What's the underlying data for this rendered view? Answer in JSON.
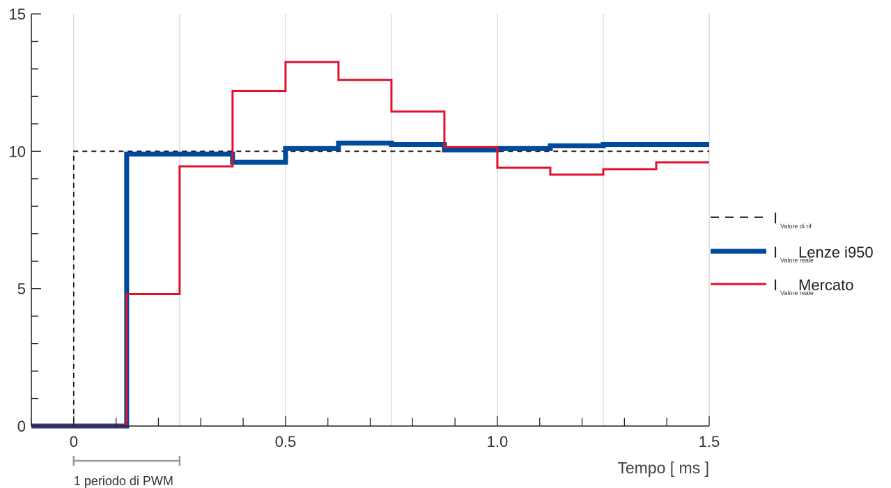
{
  "chart_data": {
    "type": "line",
    "step": true,
    "xlabel": "Tempo [ ms ]",
    "xlim": [
      -0.1,
      1.5
    ],
    "ylim": [
      0,
      15
    ],
    "x_ticks": [
      0,
      0.5,
      1.0,
      1.5
    ],
    "x_tick_labels": [
      "0",
      "0.5",
      "1.0",
      "1.5"
    ],
    "y_ticks": [
      0,
      5,
      10,
      15
    ],
    "y_tick_labels": [
      "0",
      "5",
      "10",
      "15"
    ],
    "grid": "vertical",
    "legend_position": "right",
    "annotation": {
      "label": "1 periodo di PWM",
      "x_start": 0,
      "x_end": 0.25
    },
    "series": [
      {
        "name": "I",
        "subscript": "Valore di rif",
        "label": "",
        "color": "#1a1a1a",
        "style": "dashed",
        "x": [
          -0.1,
          0.0,
          0.0,
          1.5
        ],
        "y": [
          0,
          0,
          10,
          10
        ]
      },
      {
        "name": "I",
        "subscript": "Valore reale",
        "label": "Lenze i950",
        "color": "#004a9c",
        "style": "thick",
        "x": [
          -0.1,
          0.125,
          0.125,
          0.375,
          0.375,
          0.5,
          0.5,
          0.625,
          0.625,
          0.75,
          0.75,
          0.875,
          0.875,
          1.0,
          1.0,
          1.125,
          1.125,
          1.25,
          1.25,
          1.5
        ],
        "y": [
          0,
          0,
          9.9,
          9.9,
          9.6,
          9.6,
          10.1,
          10.1,
          10.3,
          10.3,
          10.25,
          10.25,
          10.05,
          10.05,
          10.1,
          10.1,
          10.2,
          10.2,
          10.25,
          10.25
        ]
      },
      {
        "name": "I",
        "subscript": "Valore reale",
        "label": "Mercato",
        "color": "#e0102e",
        "style": "solid",
        "x": [
          -0.1,
          0.125,
          0.125,
          0.25,
          0.25,
          0.375,
          0.375,
          0.5,
          0.5,
          0.625,
          0.625,
          0.75,
          0.75,
          0.875,
          0.875,
          1.0,
          1.0,
          1.125,
          1.125,
          1.25,
          1.25,
          1.375,
          1.375,
          1.5
        ],
        "y": [
          0,
          0,
          4.8,
          4.8,
          9.45,
          9.45,
          12.2,
          12.2,
          13.25,
          13.25,
          12.6,
          12.6,
          11.45,
          11.45,
          10.15,
          10.15,
          9.4,
          9.4,
          9.15,
          9.15,
          9.35,
          9.35,
          9.6,
          9.6
        ]
      }
    ]
  }
}
